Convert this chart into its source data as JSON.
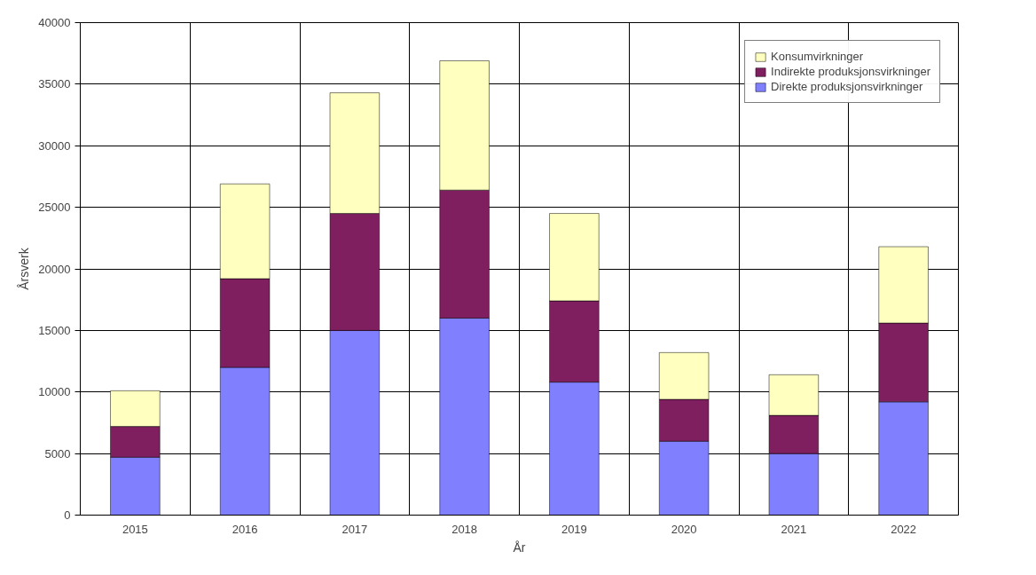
{
  "chart_data": {
    "type": "bar",
    "stacked": true,
    "xlabel": "År",
    "ylabel": "Årsverk",
    "categories": [
      "2015",
      "2016",
      "2017",
      "2018",
      "2019",
      "2020",
      "2021",
      "2022"
    ],
    "series": [
      {
        "name": "Direkte produksjonsvirkninger",
        "color": "#8080ff",
        "values": [
          4700,
          12000,
          15000,
          16000,
          10800,
          6000,
          5000,
          9200
        ]
      },
      {
        "name": "Indirekte produksjonsvirkninger",
        "color": "#7f1f5f",
        "values": [
          2500,
          7200,
          9500,
          10400,
          6600,
          3400,
          3100,
          6400
        ]
      },
      {
        "name": "Konsumvirkninger",
        "color": "#ffffc0",
        "values": [
          2900,
          7700,
          9800,
          10500,
          7100,
          3800,
          3300,
          6200
        ]
      }
    ],
    "ylim": [
      0,
      40000
    ],
    "yticks": [
      0,
      5000,
      10000,
      15000,
      20000,
      25000,
      30000,
      35000,
      40000
    ],
    "grid": true,
    "legend": "top right"
  }
}
